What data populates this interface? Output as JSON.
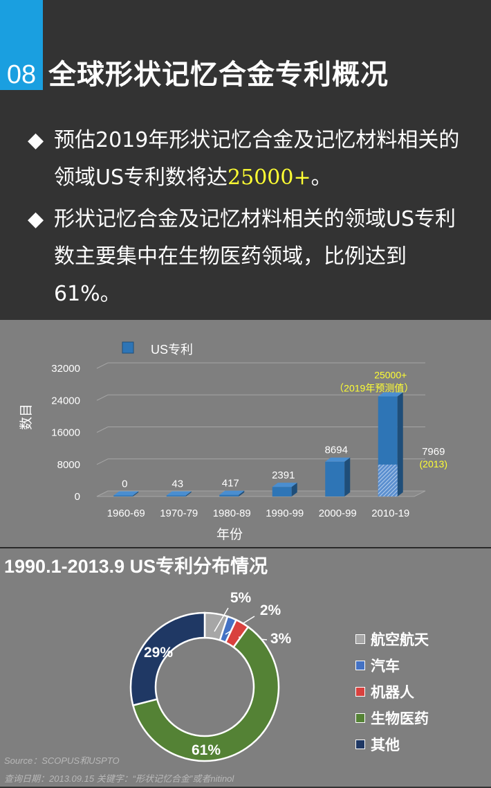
{
  "header": {
    "number": "08",
    "title": "全球形状记忆合金专利概况",
    "bullets": [
      {
        "mark": "◆",
        "parts": [
          "预估2019年形状记忆合金及记忆材料相关的领域US专利数将达",
          "25000+",
          "。"
        ]
      },
      {
        "mark": "◆",
        "parts": [
          "形状记忆合金及记忆材料相关的领域US专利数主要集中在生物医药领域，比例达到61%。"
        ]
      }
    ]
  },
  "chart_data": [
    {
      "type": "bar",
      "legend": "US专利",
      "ylabel": "数目",
      "xlabel": "年份",
      "ylim": [
        0,
        32000
      ],
      "yticks": [
        "32000",
        "24000",
        "16000",
        "8000",
        "0"
      ],
      "categories": [
        "1960-69",
        "1970-79",
        "1980-89",
        "1990-99",
        "2000-99",
        "2010-19"
      ],
      "values": [
        0,
        43,
        417,
        2391,
        8694,
        25000
      ],
      "value_labels": [
        "0",
        "43",
        "417",
        "2391",
        "8694",
        "25000+"
      ],
      "forecast_note": "（2019年预测值）",
      "actual_2013": {
        "value": 7969,
        "label": "7969",
        "note": "(2013)"
      },
      "bar_color": "#2e75b6"
    },
    {
      "type": "pie",
      "title": "1990.1-2013.9 US专利分布情况",
      "slices": [
        {
          "name": "航空航天",
          "value": 5,
          "label": "5%",
          "color": "#a6a6a6"
        },
        {
          "name": "汽车",
          "value": 2,
          "label": "2%",
          "color": "#4472c4"
        },
        {
          "name": "机器人",
          "value": 3,
          "label": "3%",
          "color": "#d9413e"
        },
        {
          "name": "生物医药",
          "value": 61,
          "label": "61%",
          "color": "#548235"
        },
        {
          "name": "其他",
          "value": 29,
          "label": "29%",
          "color": "#1f3864"
        }
      ]
    }
  ],
  "footer": {
    "source": "Source：SCOPUS和USPTO",
    "query": "查询日期：2013.09.15    关键字：“形状记忆合金”或者nitinol"
  }
}
